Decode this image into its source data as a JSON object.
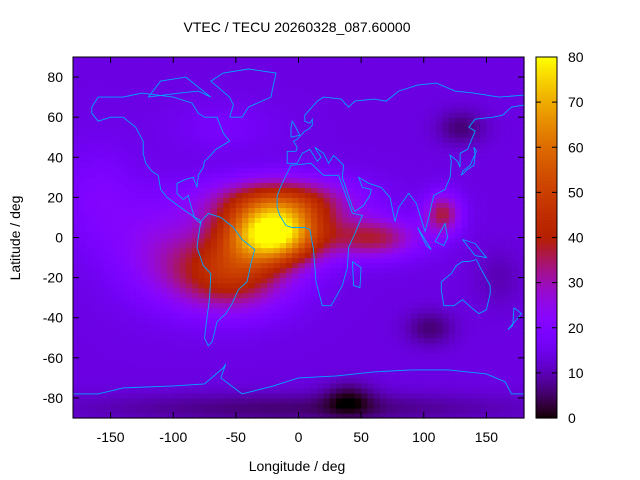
{
  "chart_data": {
    "type": "heatmap",
    "title": "VTEC / TECU 20260328_087.60000",
    "xlabel": "Longitude / deg",
    "ylabel": "Latitude / deg",
    "xlim": [
      -180,
      180
    ],
    "ylim": [
      -90,
      90
    ],
    "x_ticks": [
      -150,
      -100,
      -50,
      0,
      50,
      100,
      150
    ],
    "y_ticks": [
      -80,
      -60,
      -40,
      -20,
      0,
      20,
      40,
      60,
      80
    ],
    "colorbar": {
      "min": 0,
      "max": 80,
      "ticks": [
        0,
        10,
        20,
        30,
        40,
        50,
        60,
        70,
        80
      ],
      "palette": "gnuplot black-purple-red-orange-yellow"
    },
    "background_level": 14,
    "features": [
      {
        "name": "equatorial-anomaly-core",
        "lon": -20,
        "lat": 2,
        "peak": 78
      },
      {
        "name": "south-atlantic-lobe",
        "lon": -55,
        "lat": -18,
        "peak": 55
      },
      {
        "name": "north-africa-crest",
        "lon": -15,
        "lat": 18,
        "peak": 55
      },
      {
        "name": "eastward-tongue",
        "lon": 60,
        "lat": 0,
        "peak": 42
      },
      {
        "name": "south-asia-spot",
        "lon": 115,
        "lat": 12,
        "peak": 44
      },
      {
        "name": "north-pacific-low",
        "lon": 130,
        "lat": 55,
        "peak": 6
      },
      {
        "name": "indian-ocean-low",
        "lon": 105,
        "lat": -45,
        "peak": 6
      },
      {
        "name": "antarctic-low",
        "lon": 40,
        "lat": -80,
        "peak": 5
      }
    ],
    "overlay": "coastlines"
  },
  "colors": {
    "axis": "#000000",
    "coastline": "#00a6ff"
  }
}
